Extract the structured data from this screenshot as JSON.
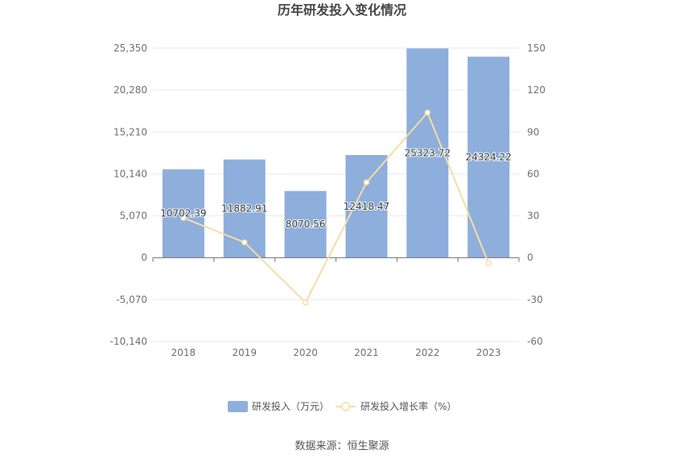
{
  "chart_data": {
    "type": "bar",
    "title": "历年研发投入变化情况",
    "categories": [
      "2018",
      "2019",
      "2020",
      "2021",
      "2022",
      "2023"
    ],
    "series": [
      {
        "name": "研发投入（万元）",
        "type": "bar",
        "axis": "left",
        "values": [
          10702.39,
          11882.91,
          8070.56,
          12418.47,
          25323.72,
          24324.22
        ],
        "labels": [
          "10702.39",
          "11882.91",
          "8070.56",
          "12418.47",
          "25323.72",
          "24324.22"
        ],
        "color": "#8eaedb"
      },
      {
        "name": "研发投入增长率（%）",
        "type": "line",
        "axis": "right",
        "values": [
          28.5,
          11.0,
          -32.1,
          53.9,
          103.9,
          -3.9
        ],
        "color": "#f7dca6"
      }
    ],
    "left_axis": {
      "ylim": [
        -10140,
        25350
      ],
      "ticks": [
        -10140,
        -5070,
        0,
        5070,
        10140,
        15210,
        20280,
        25350
      ],
      "tick_labels": [
        "-10,140",
        "-5,070",
        "0",
        "5,070",
        "10,140",
        "15,210",
        "20,280",
        "25,350"
      ]
    },
    "right_axis": {
      "ylim": [
        -60,
        150
      ],
      "ticks": [
        -60,
        -30,
        0,
        30,
        60,
        90,
        120,
        150
      ],
      "tick_labels": [
        "-60",
        "-30",
        "0",
        "30",
        "60",
        "90",
        "120",
        "150"
      ]
    },
    "grid": true,
    "legend_position": "bottom",
    "source": "数据来源：恒生聚源"
  }
}
